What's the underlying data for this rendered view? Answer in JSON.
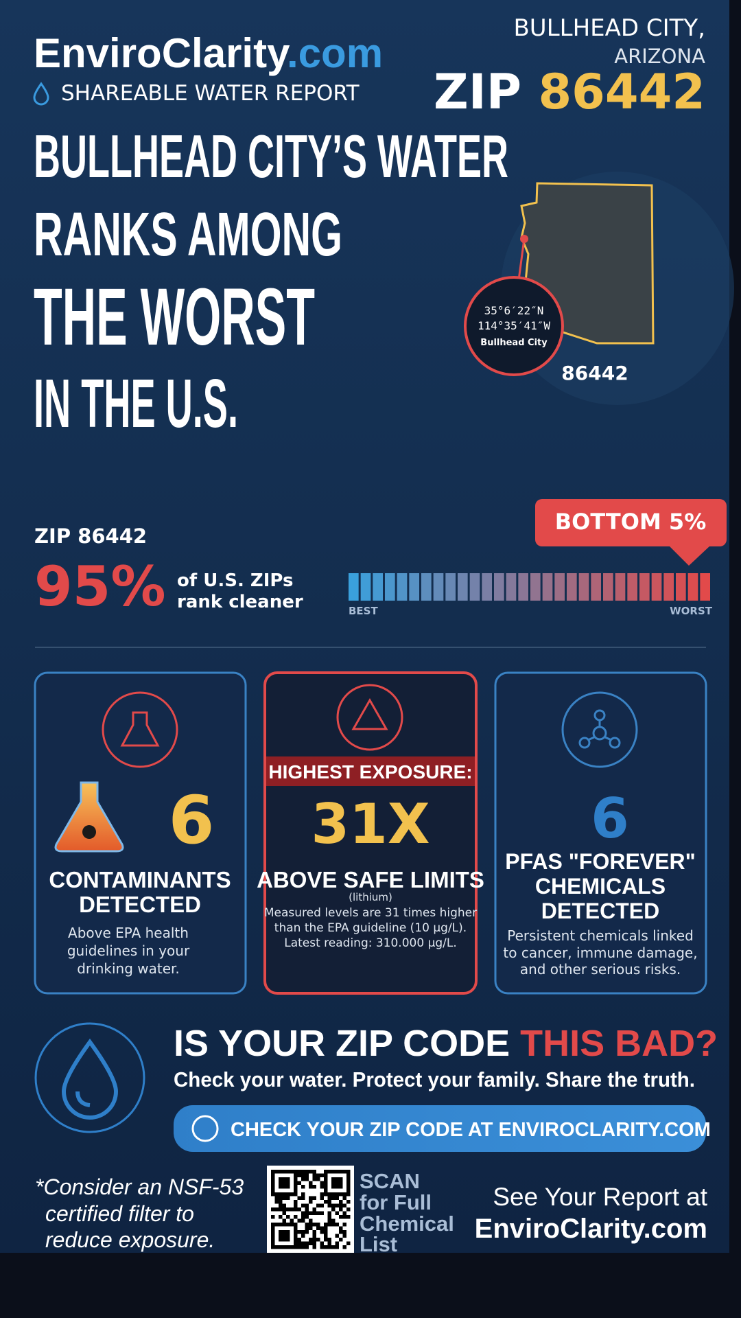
{
  "header": {
    "logo_main": "EnviroClarity",
    "logo_tld": ".com",
    "subtitle": "SHAREABLE WATER REPORT",
    "city": "BULLHEAD CITY,",
    "state": "ARIZONA",
    "zip_prefix": "ZIP",
    "zip": "86442"
  },
  "headline": [
    "BULLHEAD CITY’S WATER",
    "RANKS AMONG",
    "THE WORST",
    "IN THE U.S."
  ],
  "map": {
    "lat": "35°6′22″N",
    "lon": "114°35′41″W",
    "place": "Bullhead City",
    "zip": "86442"
  },
  "ranking": {
    "zip_label": "ZIP 86442",
    "percent": "95%",
    "text_line1": "of U.S. ZIPs",
    "text_line2": "rank cleaner",
    "badge": "BOTTOM 5%",
    "best": "BEST",
    "worst": "WORST"
  },
  "cards": [
    {
      "number": "6",
      "title": [
        "CONTAMINANTS",
        "DETECTED"
      ],
      "description": [
        "Above EPA health",
        "guidelines in your",
        "drinking water."
      ]
    },
    {
      "banner": "HIGHEST EXPOSURE:",
      "number": "31X",
      "title": [
        "ABOVE SAFE LIMITS"
      ],
      "note": "(lithium)",
      "description": [
        "Measured levels are 31 times higher",
        "than the EPA guideline (10 µg/L).",
        "Latest reading: 310.000 µg/L."
      ]
    },
    {
      "number": "6",
      "title": [
        "PFAS \"FOREVER\"",
        "CHEMICALS",
        "DETECTED"
      ],
      "description": [
        "Persistent chemicals linked",
        "to cancer, immune damage,",
        "and other serious risks."
      ]
    }
  ],
  "cta": {
    "question_start": "IS YOUR ZIP CODE ",
    "question_end": "THIS BAD?",
    "subline": "Check your water. Protect your family. Share the truth.",
    "button_start": "CHECK YOUR ZIP CODE AT ",
    "button_end": "ENVIROCLARITY.COM"
  },
  "footer": {
    "note": [
      "*Consider an NSF-53",
      "certified filter to",
      "reduce exposure."
    ],
    "scan": [
      "SCAN",
      "for Full",
      "Chemical",
      "List"
    ],
    "report": "See Your Report at",
    "site": "EnviroClarity.com"
  }
}
